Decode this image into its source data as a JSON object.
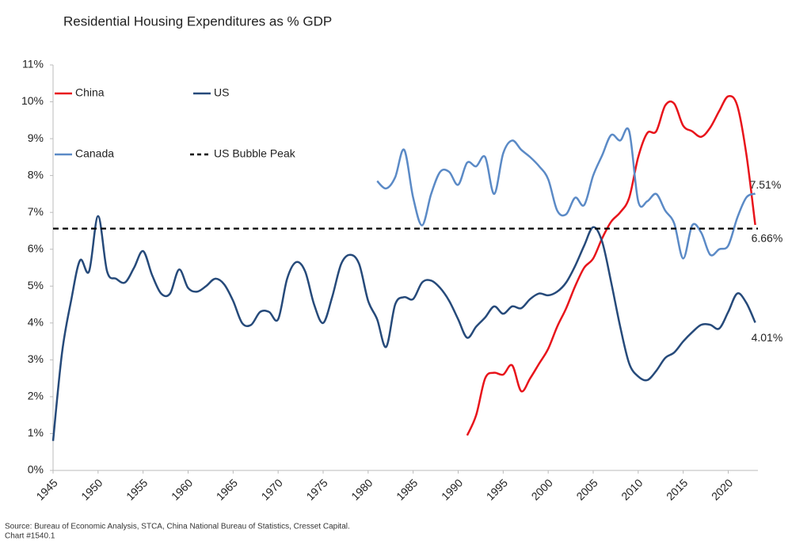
{
  "chart_data": {
    "type": "line",
    "title": "Residential Housing Expenditures as % GDP",
    "source": "Source:  Bureau of Economic Analysis, STCA, China National Bureau of Statistics, Cresset Capital.",
    "chart_id": "Chart #1540.1",
    "xlim": [
      1945,
      2023.3
    ],
    "xticks": [
      1945,
      1950,
      1955,
      1960,
      1965,
      1970,
      1975,
      1980,
      1985,
      1990,
      1995,
      2000,
      2005,
      2010,
      2015,
      2020
    ],
    "ylim": [
      0,
      11
    ],
    "yticks": [
      {
        "value": 0,
        "label": "0%"
      },
      {
        "value": 1,
        "label": "1%"
      },
      {
        "value": 2,
        "label": "2%"
      },
      {
        "value": 3,
        "label": "3%"
      },
      {
        "value": 4,
        "label": "4%"
      },
      {
        "value": 5,
        "label": "5%"
      },
      {
        "value": 6,
        "label": "6%"
      },
      {
        "value": 7,
        "label": "7%"
      },
      {
        "value": 8,
        "label": "8%"
      },
      {
        "value": 9,
        "label": "9%"
      },
      {
        "value": 10,
        "label": "10%"
      },
      {
        "value": 11,
        "label": "11%"
      }
    ],
    "grid": false,
    "series": [
      {
        "name": "China",
        "color": "#e8141b",
        "dashed": false,
        "x": [
          1991,
          1992,
          1993,
          1994,
          1995,
          1996,
          1997,
          1998,
          1999,
          2000,
          2001,
          2002,
          2003,
          2004,
          2005,
          2006,
          2007,
          2008,
          2009,
          2010,
          2011,
          2012,
          2013,
          2014,
          2015,
          2016,
          2017,
          2018,
          2019,
          2020,
          2021,
          2022,
          2023
        ],
        "values": [
          0.95,
          1.5,
          2.5,
          2.65,
          2.6,
          2.85,
          2.15,
          2.5,
          2.9,
          3.3,
          3.9,
          4.4,
          5.0,
          5.5,
          5.75,
          6.3,
          6.75,
          7.0,
          7.4,
          8.5,
          9.15,
          9.2,
          9.9,
          9.95,
          9.35,
          9.2,
          9.05,
          9.3,
          9.75,
          10.15,
          9.9,
          8.6,
          6.66
        ],
        "last_label": "6.66%"
      },
      {
        "name": "US",
        "color": "#264a7a",
        "dashed": false,
        "x": [
          1945,
          1946,
          1947,
          1948,
          1949,
          1950,
          1951,
          1952,
          1953,
          1954,
          1955,
          1956,
          1957,
          1958,
          1959,
          1960,
          1961,
          1962,
          1963,
          1964,
          1965,
          1966,
          1967,
          1968,
          1969,
          1970,
          1971,
          1972,
          1973,
          1974,
          1975,
          1976,
          1977,
          1978,
          1979,
          1980,
          1981,
          1982,
          1983,
          1984,
          1985,
          1986,
          1987,
          1988,
          1989,
          1990,
          1991,
          1992,
          1993,
          1994,
          1995,
          1996,
          1997,
          1998,
          1999,
          2000,
          2001,
          2002,
          2003,
          2004,
          2005,
          2006,
          2007,
          2008,
          2009,
          2010,
          2011,
          2012,
          2013,
          2014,
          2015,
          2016,
          2017,
          2018,
          2019,
          2020,
          2021,
          2022,
          2023
        ],
        "values": [
          0.8,
          3.2,
          4.6,
          5.7,
          5.4,
          6.9,
          5.4,
          5.2,
          5.1,
          5.5,
          5.95,
          5.3,
          4.8,
          4.8,
          5.45,
          4.95,
          4.85,
          5.0,
          5.2,
          5.05,
          4.6,
          4.0,
          3.95,
          4.3,
          4.3,
          4.1,
          5.2,
          5.65,
          5.4,
          4.5,
          4.0,
          4.7,
          5.6,
          5.85,
          5.6,
          4.6,
          4.1,
          3.35,
          4.5,
          4.7,
          4.65,
          5.1,
          5.15,
          4.95,
          4.6,
          4.1,
          3.6,
          3.9,
          4.15,
          4.45,
          4.25,
          4.45,
          4.4,
          4.65,
          4.8,
          4.75,
          4.85,
          5.1,
          5.55,
          6.1,
          6.6,
          6.2,
          5.1,
          3.9,
          2.9,
          2.55,
          2.45,
          2.7,
          3.05,
          3.2,
          3.5,
          3.75,
          3.95,
          3.95,
          3.85,
          4.3,
          4.8,
          4.55,
          4.01
        ],
        "last_label": "4.01%"
      },
      {
        "name": "Canada",
        "color": "#5b8ac6",
        "dashed": false,
        "x": [
          1981,
          1982,
          1983,
          1984,
          1985,
          1986,
          1987,
          1988,
          1989,
          1990,
          1991,
          1992,
          1993,
          1994,
          1995,
          1996,
          1997,
          1998,
          1999,
          2000,
          2001,
          2002,
          2003,
          2004,
          2005,
          2006,
          2007,
          2008,
          2009,
          2010,
          2011,
          2012,
          2013,
          2014,
          2015,
          2016,
          2017,
          2018,
          2019,
          2020,
          2021,
          2022,
          2023
        ],
        "values": [
          7.85,
          7.65,
          7.95,
          8.7,
          7.4,
          6.65,
          7.5,
          8.1,
          8.1,
          7.75,
          8.35,
          8.25,
          8.5,
          7.5,
          8.6,
          8.95,
          8.7,
          8.5,
          8.25,
          7.9,
          7.05,
          6.95,
          7.4,
          7.2,
          8.0,
          8.55,
          9.1,
          8.95,
          9.2,
          7.3,
          7.3,
          7.5,
          7.05,
          6.7,
          5.75,
          6.65,
          6.45,
          5.85,
          6.0,
          6.1,
          6.85,
          7.4,
          7.51
        ],
        "last_label": "7.51%"
      },
      {
        "name": "US Bubble Peak",
        "color": "#000000",
        "dashed": true,
        "x": [
          1945,
          2023.3
        ],
        "values": [
          6.56,
          6.56
        ]
      }
    ]
  }
}
